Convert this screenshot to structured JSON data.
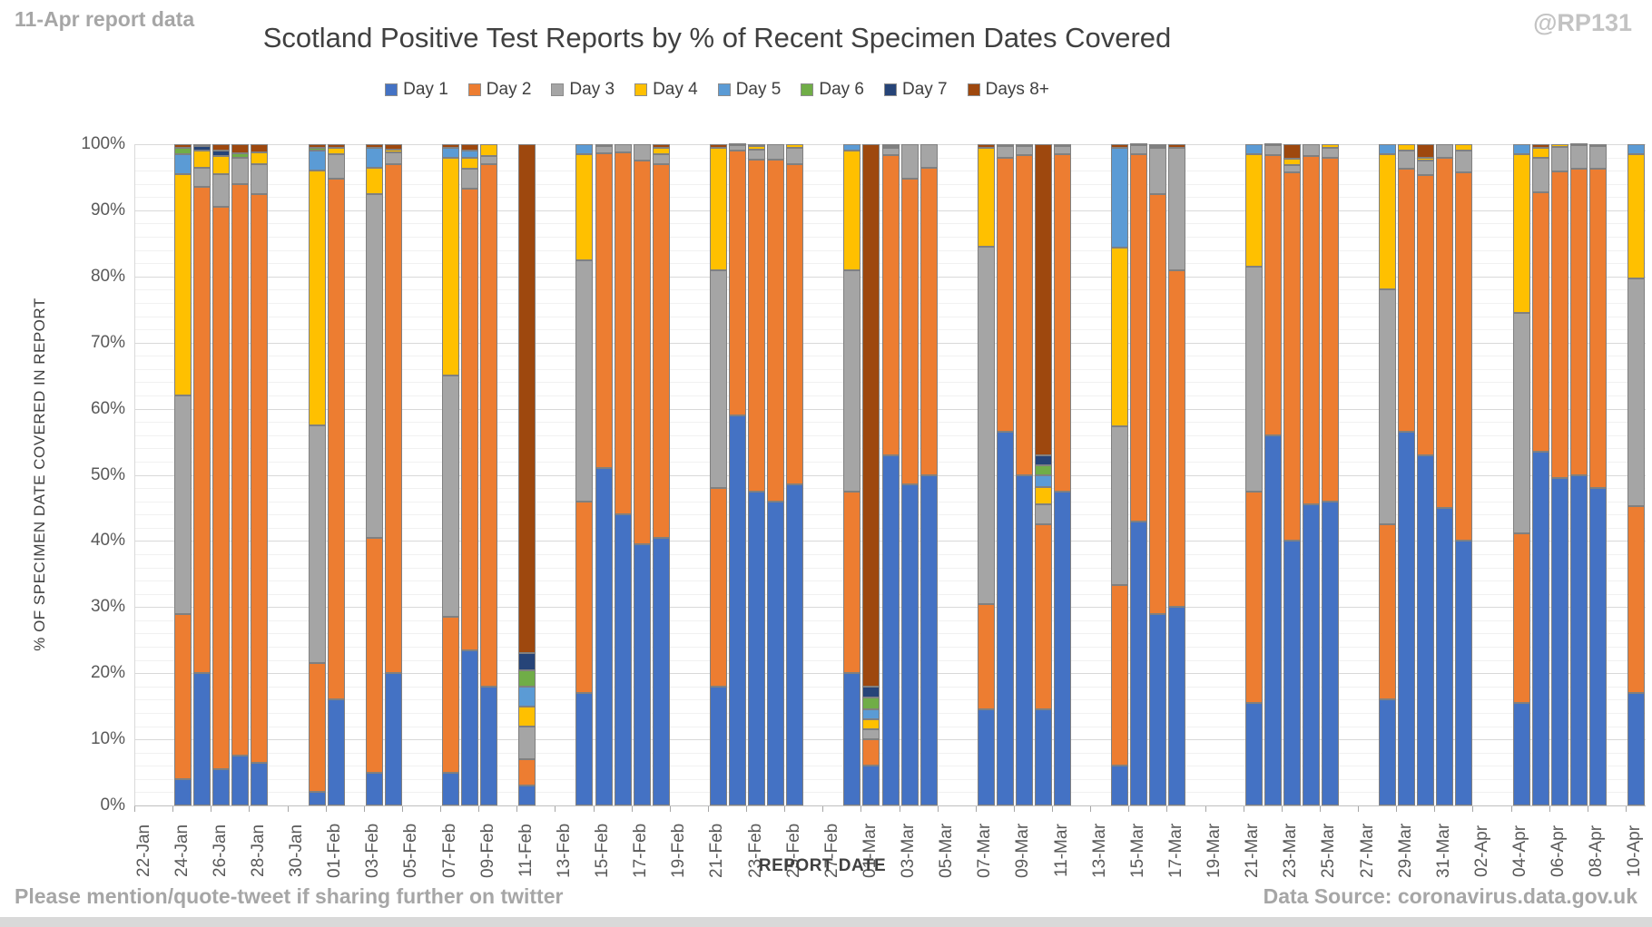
{
  "header": {
    "note": "11-Apr report data",
    "watermark": "@RP131"
  },
  "footer": {
    "left": "Please mention/quote-tweet if sharing further on twitter",
    "right": "Data Source: coronavirus.data.gov.uk"
  },
  "chart_data": {
    "type": "bar",
    "stacked": true,
    "title": "Scotland Positive Test Reports by % of Recent Specimen Dates Covered",
    "xlabel": "REPORT DATE",
    "ylabel": "% OF SPECIMEN DATE COVERED IN REPORT",
    "ylim": [
      0,
      100
    ],
    "ytick_step": 10,
    "yminor_step": 2,
    "grid": true,
    "legend_position": "top",
    "ytick_labels": [
      "0%",
      "10%",
      "20%",
      "30%",
      "40%",
      "50%",
      "60%",
      "70%",
      "80%",
      "90%",
      "100%"
    ],
    "legend": [
      {
        "name": "Day 1",
        "color": "#4472C4"
      },
      {
        "name": "Day 2",
        "color": "#ED7D31"
      },
      {
        "name": "Day 3",
        "color": "#A5A5A5"
      },
      {
        "name": "Day 4",
        "color": "#FFC000"
      },
      {
        "name": "Day 5",
        "color": "#5B9BD5"
      },
      {
        "name": "Day 6",
        "color": "#70AD47"
      },
      {
        "name": "Day 7",
        "color": "#264478"
      },
      {
        "name": "Days 8+",
        "color": "#9E480E"
      }
    ],
    "x_axis": {
      "start": "22-Jan",
      "end": "10-Apr",
      "slots": 79,
      "label_every_days": 2,
      "labels": [
        "22-Jan",
        "24-Jan",
        "26-Jan",
        "28-Jan",
        "30-Jan",
        "01-Feb",
        "03-Feb",
        "05-Feb",
        "07-Feb",
        "09-Feb",
        "11-Feb",
        "13-Feb",
        "15-Feb",
        "17-Feb",
        "19-Feb",
        "21-Feb",
        "23-Feb",
        "25-Feb",
        "27-Feb",
        "01-Mar",
        "03-Mar",
        "05-Mar",
        "07-Mar",
        "09-Mar",
        "11-Mar",
        "13-Mar",
        "15-Mar",
        "17-Mar",
        "19-Mar",
        "21-Mar",
        "23-Mar",
        "25-Mar",
        "27-Mar",
        "29-Mar",
        "31-Mar",
        "02-Apr",
        "04-Apr",
        "06-Apr",
        "08-Apr",
        "10-Apr"
      ]
    },
    "series_order_note": "values arrays are [Day1,Day2,Day3,Day4,Day5,Day6,Day7,Days8+] in percent, stacked bottom-to-top",
    "bars": [
      {
        "date": "24-Jan",
        "slot": 2,
        "values": [
          4,
          25,
          33,
          33.5,
          3,
          1,
          0,
          0.5
        ]
      },
      {
        "date": "25-Jan",
        "slot": 3,
        "values": [
          20,
          73.5,
          3,
          2.5,
          0,
          0,
          0.7,
          0.3
        ]
      },
      {
        "date": "26-Jan",
        "slot": 4,
        "values": [
          5.5,
          85,
          5,
          2.7,
          0,
          0,
          0.8,
          1
        ]
      },
      {
        "date": "27-Jan",
        "slot": 5,
        "values": [
          7.5,
          86.5,
          4,
          0,
          0,
          0.7,
          0,
          1.3
        ]
      },
      {
        "date": "28-Jan",
        "slot": 6,
        "values": [
          6.5,
          86,
          4.5,
          1.8,
          0,
          0,
          0,
          1.2
        ]
      },
      {
        "date": "31-Jan",
        "slot": 9,
        "values": [
          2,
          19.5,
          36,
          38.5,
          3,
          0.5,
          0,
          0.5
        ]
      },
      {
        "date": "01-Feb",
        "slot": 10,
        "values": [
          16,
          78.8,
          3.7,
          1,
          0,
          0,
          0,
          0.5
        ]
      },
      {
        "date": "03-Feb",
        "slot": 12,
        "values": [
          5,
          35.5,
          52,
          4,
          3,
          0,
          0,
          0.5
        ]
      },
      {
        "date": "04-Feb",
        "slot": 13,
        "values": [
          20,
          77,
          1.8,
          0.4,
          0,
          0,
          0,
          0.8
        ]
      },
      {
        "date": "07-Feb",
        "slot": 16,
        "values": [
          5,
          23.5,
          36.5,
          33,
          1.5,
          0,
          0,
          0.5
        ]
      },
      {
        "date": "08-Feb",
        "slot": 17,
        "values": [
          23.5,
          69.8,
          3,
          1.7,
          1,
          0,
          0,
          1
        ]
      },
      {
        "date": "09-Feb",
        "slot": 18,
        "values": [
          18,
          79,
          1.2,
          1.8,
          0,
          0,
          0,
          0
        ]
      },
      {
        "date": "11-Feb",
        "slot": 20,
        "values": [
          3,
          4,
          5,
          3,
          3,
          2.5,
          2.5,
          77
        ]
      },
      {
        "date": "14-Feb",
        "slot": 23,
        "values": [
          17,
          29,
          36.5,
          16,
          1.5,
          0,
          0,
          0
        ]
      },
      {
        "date": "15-Feb",
        "slot": 24,
        "values": [
          51,
          47.7,
          1,
          0,
          0,
          0,
          0,
          0.3
        ]
      },
      {
        "date": "16-Feb",
        "slot": 25,
        "values": [
          44,
          54.8,
          1.2,
          0,
          0,
          0,
          0,
          0
        ]
      },
      {
        "date": "17-Feb",
        "slot": 26,
        "values": [
          39.5,
          58,
          2.5,
          0,
          0,
          0,
          0,
          0
        ]
      },
      {
        "date": "18-Feb",
        "slot": 27,
        "values": [
          40.5,
          56.5,
          1.5,
          1,
          0,
          0,
          0,
          0.5
        ]
      },
      {
        "date": "21-Feb",
        "slot": 30,
        "values": [
          18,
          30,
          33,
          18.5,
          0,
          0,
          0,
          0.5
        ]
      },
      {
        "date": "22-Feb",
        "slot": 31,
        "values": [
          59,
          40,
          0.8,
          0,
          0,
          0,
          0,
          0.2
        ]
      },
      {
        "date": "23-Feb",
        "slot": 32,
        "values": [
          47.5,
          50.2,
          1.5,
          0.5,
          0,
          0,
          0,
          0.3
        ]
      },
      {
        "date": "24-Feb",
        "slot": 33,
        "values": [
          46,
          51.7,
          2.3,
          0,
          0,
          0,
          0,
          0
        ]
      },
      {
        "date": "25-Feb",
        "slot": 34,
        "values": [
          48.5,
          48.5,
          2.5,
          0.5,
          0,
          0,
          0,
          0
        ]
      },
      {
        "date": "28-Feb",
        "slot": 37,
        "values": [
          20,
          27.5,
          33.5,
          18,
          1,
          0,
          0,
          0
        ]
      },
      {
        "date": "01-Mar",
        "slot": 38,
        "values": [
          6,
          4,
          1.5,
          1.5,
          1.5,
          1.8,
          1.7,
          82
        ]
      },
      {
        "date": "02-Mar",
        "slot": 39,
        "values": [
          53,
          45.4,
          1,
          0.4,
          0,
          0,
          0,
          0.2
        ]
      },
      {
        "date": "03-Mar",
        "slot": 40,
        "values": [
          48.5,
          46.3,
          5.2,
          0,
          0,
          0,
          0,
          0
        ]
      },
      {
        "date": "04-Mar",
        "slot": 41,
        "values": [
          50,
          46.5,
          3.5,
          0,
          0,
          0,
          0,
          0
        ]
      },
      {
        "date": "07-Mar",
        "slot": 44,
        "values": [
          14.5,
          16,
          54,
          15,
          0,
          0,
          0,
          0.5
        ]
      },
      {
        "date": "08-Mar",
        "slot": 45,
        "values": [
          56.5,
          41.5,
          1.7,
          0,
          0,
          0,
          0,
          0.3
        ]
      },
      {
        "date": "09-Mar",
        "slot": 46,
        "values": [
          50,
          48.4,
          1.3,
          0,
          0,
          0,
          0,
          0.3
        ]
      },
      {
        "date": "10-Mar",
        "slot": 47,
        "values": [
          14.5,
          28,
          3,
          2.7,
          1.8,
          1.4,
          1.6,
          47
        ]
      },
      {
        "date": "11-Mar",
        "slot": 48,
        "values": [
          47.5,
          51,
          1.2,
          0,
          0,
          0,
          0,
          0.3
        ]
      },
      {
        "date": "14-Mar",
        "slot": 51,
        "values": [
          6,
          27.3,
          24,
          27.1,
          15.1,
          0,
          0,
          0.5
        ]
      },
      {
        "date": "15-Mar",
        "slot": 52,
        "values": [
          43,
          55.5,
          1.3,
          0,
          0,
          0,
          0,
          0.2
        ]
      },
      {
        "date": "16-Mar",
        "slot": 53,
        "values": [
          29,
          63.4,
          7,
          0.4,
          0,
          0,
          0,
          0.2
        ]
      },
      {
        "date": "17-Mar",
        "slot": 54,
        "values": [
          30,
          51,
          18.5,
          0,
          0,
          0,
          0,
          0.5
        ]
      },
      {
        "date": "21-Mar",
        "slot": 58,
        "values": [
          15.5,
          32,
          34,
          17,
          1.5,
          0,
          0,
          0
        ]
      },
      {
        "date": "22-Mar",
        "slot": 59,
        "values": [
          56,
          42.3,
          1.5,
          0.2,
          0,
          0,
          0,
          0
        ]
      },
      {
        "date": "23-Mar",
        "slot": 60,
        "values": [
          40,
          55.8,
          1,
          1,
          0,
          0,
          0,
          2.2
        ]
      },
      {
        "date": "24-Mar",
        "slot": 61,
        "values": [
          45.5,
          52.7,
          1.8,
          0,
          0,
          0,
          0,
          0
        ]
      },
      {
        "date": "25-Mar",
        "slot": 62,
        "values": [
          46,
          52,
          1.5,
          0.5,
          0,
          0,
          0,
          0
        ]
      },
      {
        "date": "28-Mar",
        "slot": 65,
        "values": [
          16,
          26.5,
          35.5,
          20.5,
          1.5,
          0,
          0,
          0
        ]
      },
      {
        "date": "29-Mar",
        "slot": 66,
        "values": [
          56.5,
          39.8,
          2.7,
          1,
          0,
          0,
          0,
          0
        ]
      },
      {
        "date": "30-Mar",
        "slot": 67,
        "values": [
          53,
          42.3,
          2.2,
          0.5,
          0,
          0,
          0,
          2
        ]
      },
      {
        "date": "31-Mar",
        "slot": 68,
        "values": [
          45,
          53,
          2,
          0,
          0,
          0,
          0,
          0
        ]
      },
      {
        "date": "01-Apr",
        "slot": 69,
        "values": [
          40,
          55.8,
          3.2,
          1,
          0,
          0,
          0,
          0
        ]
      },
      {
        "date": "04-Apr",
        "slot": 72,
        "values": [
          15.5,
          25.6,
          33.4,
          24,
          1.5,
          0,
          0,
          0
        ]
      },
      {
        "date": "05-Apr",
        "slot": 73,
        "values": [
          53.5,
          39.2,
          5.3,
          1.5,
          0,
          0,
          0,
          0.5
        ]
      },
      {
        "date": "06-Apr",
        "slot": 74,
        "values": [
          49.5,
          46.4,
          3.7,
          0.4,
          0,
          0,
          0,
          0
        ]
      },
      {
        "date": "07-Apr",
        "slot": 75,
        "values": [
          50,
          46.3,
          3.5,
          0,
          0,
          0,
          0,
          0.2
        ]
      },
      {
        "date": "08-Apr",
        "slot": 76,
        "values": [
          48,
          48.3,
          3.5,
          0,
          0,
          0,
          0,
          0.2
        ]
      },
      {
        "date": "10-Apr",
        "slot": 78,
        "values": [
          17,
          28.3,
          34.4,
          18.8,
          1.5,
          0,
          0,
          0
        ]
      }
    ]
  }
}
